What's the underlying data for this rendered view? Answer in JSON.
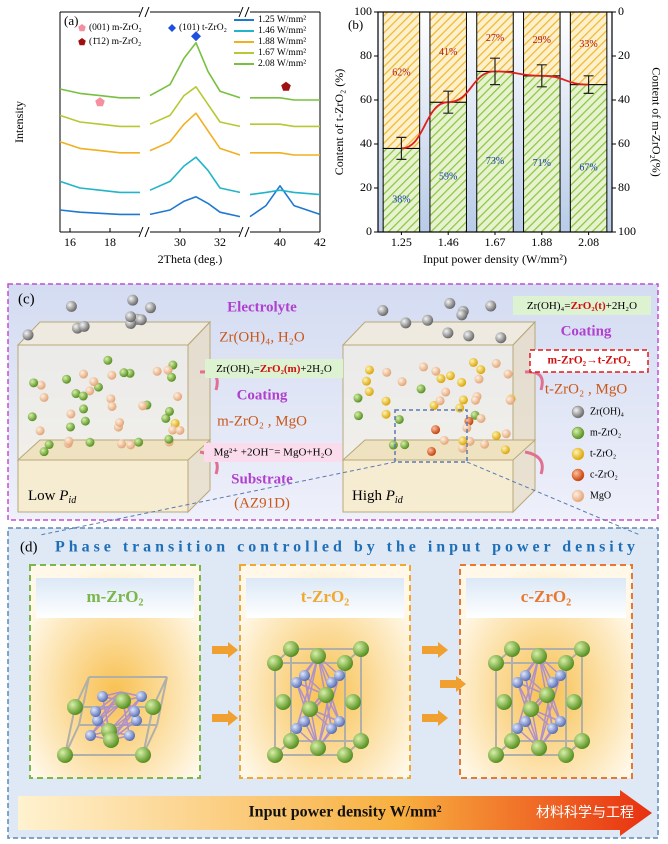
{
  "chart_data": [
    {
      "type": "line",
      "panel_label": "(a)",
      "ylabel": "Intensity",
      "xlabel": "2Theta (deg.)",
      "x": [
        15.5,
        16.5,
        17.5,
        18.5,
        19.5,
        28.5,
        29.5,
        30.2,
        30.8,
        31.4,
        32,
        33,
        38.5,
        39.3,
        40,
        40.7,
        42
      ],
      "xlim": [
        15.5,
        42
      ],
      "segments": [
        [
          15.5,
          19.5
        ],
        [
          28.5,
          33
        ],
        [
          38.5,
          42
        ]
      ],
      "xticks": [
        16,
        18,
        30,
        32,
        40,
        42
      ],
      "ylim": [
        0,
        10
      ],
      "series": [
        {
          "name": "1.25 W/mm²",
          "color": "#1f78d0",
          "values": [
            1.0,
            0.9,
            0.85,
            0.8,
            0.8,
            0.8,
            1.0,
            1.4,
            1.6,
            1.3,
            0.9,
            0.7,
            0.7,
            1.2,
            2.1,
            1.2,
            0.8
          ]
        },
        {
          "name": "1.46 W/mm²",
          "color": "#22b4c8",
          "values": [
            2.3,
            2.0,
            1.9,
            1.8,
            1.8,
            1.9,
            2.3,
            3.0,
            3.4,
            2.8,
            2.0,
            1.8,
            1.7,
            1.8,
            1.9,
            1.8,
            1.7
          ]
        },
        {
          "name": "1.88 W/mm²",
          "color": "#f0b020",
          "values": [
            4.1,
            3.8,
            3.7,
            3.6,
            3.6,
            3.7,
            4.1,
            4.9,
            5.4,
            4.6,
            3.8,
            3.5,
            3.6,
            3.6,
            3.6,
            3.5,
            3.5
          ]
        },
        {
          "name": "1.67 W/mm²",
          "color": "#b8c832",
          "values": [
            5.3,
            5.0,
            4.9,
            4.8,
            4.8,
            4.9,
            5.3,
            6.2,
            6.6,
            5.8,
            5.0,
            4.8,
            4.9,
            4.9,
            4.9,
            4.8,
            4.8
          ]
        },
        {
          "name": "2.08 W/mm²",
          "color": "#78c040",
          "values": [
            6.5,
            6.3,
            6.2,
            6.1,
            6.1,
            6.2,
            6.7,
            7.9,
            8.6,
            7.3,
            6.4,
            6.1,
            6.1,
            6.1,
            6.1,
            6.0,
            6.0
          ]
        }
      ],
      "annotations": [
        {
          "label": "(001) m-ZrO₂",
          "shape": "pentagon",
          "color": "#f490a0",
          "x": 17.5,
          "y": 5.9
        },
        {
          "label": "(1̄12) m-ZrO₂",
          "shape": "pentagon",
          "color": "#a01010",
          "x": 40.3,
          "y": 6.6
        },
        {
          "label": "(101) t-ZrO₂",
          "shape": "diamond",
          "color": "#1f4fe0",
          "x": 30.8,
          "y": 8.9
        }
      ]
    },
    {
      "type": "bar",
      "panel_label": "(b)",
      "stacked": true,
      "categories": [
        "1.25",
        "1.46",
        "1.67",
        "1.88",
        "2.08"
      ],
      "xlabel": "Input power density (W/mm²)",
      "ylabel": "Content of t-ZrO₂ (%)",
      "y2label": "Content of m-ZrO₂(%)",
      "ylim": [
        0,
        100
      ],
      "yticks": [
        0,
        20,
        40,
        60,
        80,
        100
      ],
      "y2lim": [
        100,
        0
      ],
      "y2ticks": [
        0,
        20,
        40,
        60,
        80,
        100
      ],
      "series": [
        {
          "color": "#8cc63f",
          "values": [
            38,
            59,
            73,
            71,
            67
          ],
          "value_labels": [
            "38%",
            "59%",
            "73%",
            "71%",
            "67%"
          ],
          "errors": [
            5,
            5,
            6,
            5,
            4
          ],
          "line_color": "#e02020"
        },
        {
          "color": "#f5b82e",
          "axis": "y2",
          "values": [
            62,
            41,
            27,
            29,
            33
          ],
          "value_labels": [
            "62%",
            "41%",
            "27%",
            "29%",
            "33%"
          ]
        }
      ]
    }
  ],
  "diagram": {
    "c": {
      "panel_label": "(c)",
      "electrolyte_title": "Electrolyte",
      "electrolyte": "Zr(OH)₄,   H₂O",
      "eq_low": [
        "Zr(OH)₄=",
        "ZrO₂(m)",
        "+2H₂O"
      ],
      "coating_title": "Coating",
      "coating_low": "m-ZrO₂ , MgO",
      "eq_mg": "Mg²⁺ +2OH⁻= MgO+H₂O",
      "substrate_title": "Substrate",
      "substrate": "(AZ91D)",
      "low": [
        "Low ",
        "P",
        "id"
      ],
      "high": [
        "High ",
        "P",
        "id"
      ],
      "eq_high": [
        "Zr(OH)₄=",
        "ZrO₂(t)",
        "+2H₂O"
      ],
      "coating_title_high": "Coating",
      "transition": "m-ZrO₂→t-ZrO₂",
      "coating_high": "t-ZrO₂ , MgO",
      "legend": [
        {
          "label": "Zr(OH)₄",
          "color": "#8a8a8a"
        },
        {
          "label": "m-ZrO₂",
          "color": "#6aa830"
        },
        {
          "label": "t-ZrO₂",
          "color": "#f0c020"
        },
        {
          "label": "c-ZrO₂",
          "color": "#e05a20"
        },
        {
          "label": "MgO",
          "color": "#f2c09a"
        }
      ]
    },
    "d": {
      "panel_label": "(d)",
      "title": "Phase transition controlled by the input power density",
      "phases": [
        {
          "label": "m-ZrO₂",
          "color": "#7ab648"
        },
        {
          "label": "t-ZrO₂",
          "color": "#f0a830"
        },
        {
          "label": "c-ZrO₂",
          "color": "#e87830"
        }
      ],
      "arrow_label": "Input power density W/mm²",
      "watermark": "材料科学与工程"
    }
  }
}
